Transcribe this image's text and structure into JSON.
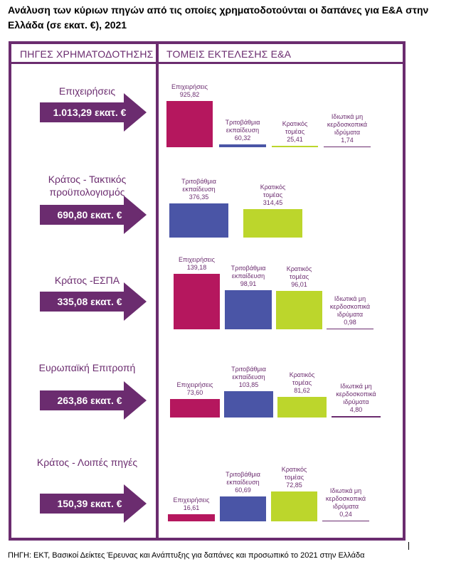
{
  "title": "Ανάλυση των κύριων πηγών από τις οποίες χρηματοδοτούνται οι δαπάνες για Ε&Α στην Ελλάδα (σε εκατ. €), 2021",
  "headers": {
    "left": "ΠΗΓΕΣ ΧΡΗΜΑΤΟΔΟΤΗΣΗΣ",
    "right": "ΤΟΜΕΙΣ ΕΚΤΕΛΕΣΗΣ Ε&Α"
  },
  "source_note": "ΠΗΓΗ: ΕΚΤ, Βασικοί Δείκτες Έρευνας και Ανάπτυξης για δαπάνες και προσωπικό το 2021 στην Ελλάδα",
  "colors": {
    "frame": "#6b2c6f",
    "Επιχειρήσεις": "#b5175e",
    "Τριτοβάθμια εκπαίδευση": "#4a55a6",
    "Κρατικός τομέας": "#bcd62c",
    "Ιδιωτικά μη κερδοσκοπικά ιδρύματα": "#6b2c6f"
  },
  "chart_data": {
    "type": "bar",
    "unit": "εκατ. €",
    "rows": [
      {
        "source": "Επιχειρήσεις",
        "total": "1.013,29 εκατ. €",
        "bars": [
          {
            "label": "Επιχειρήσεις",
            "value": 925.82,
            "text": "925,82"
          },
          {
            "label": "Τριτοβάθμια εκπαίδευση",
            "value": 60.32,
            "text": "60,32"
          },
          {
            "label": "Κρατικός τομέας",
            "value": 25.41,
            "text": "25,41"
          },
          {
            "label": "Ιδιωτικά μη κερδοσκοπικά ιδρύματα",
            "value": 1.74,
            "text": "1,74"
          }
        ]
      },
      {
        "source": "Κράτος - Τακτικός προϋπολογισμός",
        "total": "690,80 εκατ. €",
        "bars": [
          {
            "label": "Τριτοβάθμια εκπαίδευση",
            "value": 376.35,
            "text": "376,35"
          },
          {
            "label": "Κρατικός τομέας",
            "value": 314.45,
            "text": "314,45"
          }
        ]
      },
      {
        "source": "Κράτος -ΕΣΠΑ",
        "total": "335,08 εκατ. €",
        "bars": [
          {
            "label": "Επιχειρήσεις",
            "value": 139.18,
            "text": "139,18"
          },
          {
            "label": "Τριτοβάθμια εκπαίδευση",
            "value": 98.91,
            "text": "98,91"
          },
          {
            "label": "Κρατικός τομέας",
            "value": 96.01,
            "text": "96,01"
          },
          {
            "label": "Ιδιωτικά μη κερδοσκοπικά ιδρύματα",
            "value": 0.98,
            "text": "0,98"
          }
        ]
      },
      {
        "source": "Ευρωπαϊκή Επιτροπή",
        "total": "263,86 εκατ. €",
        "bars": [
          {
            "label": "Επιχειρήσεις",
            "value": 73.6,
            "text": "73,60"
          },
          {
            "label": "Τριτοβάθμια εκπαίδευση",
            "value": 103.85,
            "text": "103,85"
          },
          {
            "label": "Κρατικός τομέας",
            "value": 81.62,
            "text": "81,62"
          },
          {
            "label": "Ιδιωτικά μη κερδοσκοπικά ιδρύματα",
            "value": 4.8,
            "text": "4,80"
          }
        ]
      },
      {
        "source": "Κράτος - Λοιπές πηγές",
        "total": "150,39 εκατ. €",
        "bars": [
          {
            "label": "Επιχειρήσεις",
            "value": 16.61,
            "text": "16,61"
          },
          {
            "label": "Τριτοβάθμια εκπαίδευση",
            "value": 60.69,
            "text": "60,69"
          },
          {
            "label": "Κρατικός τομέας",
            "value": 72.85,
            "text": "72,85"
          },
          {
            "label": "Ιδιωτικά μη κερδοσκοπικά ιδρύματα",
            "value": 0.24,
            "text": "0,24"
          }
        ]
      }
    ]
  }
}
